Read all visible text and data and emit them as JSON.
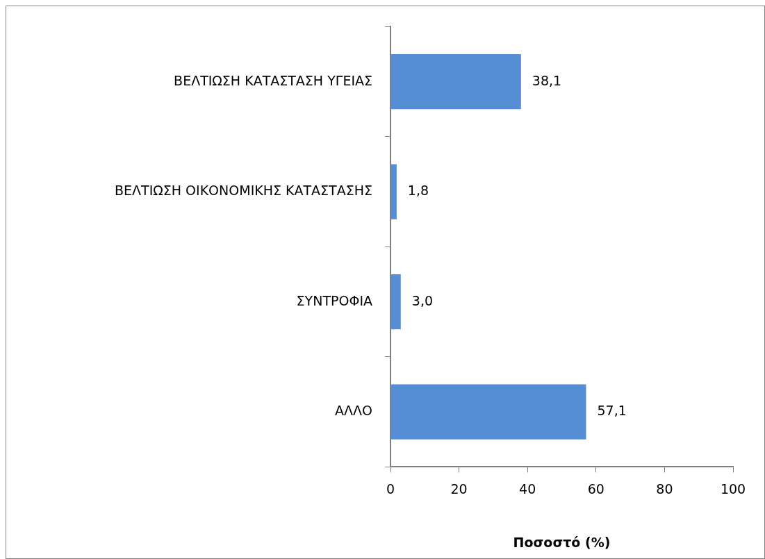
{
  "chart_data": {
    "type": "bar",
    "orientation": "horizontal",
    "xlabel": "Ποσοστό (%)",
    "categories": [
      "ΒΕΛΤΙΩΣΗ ΚΑΤΑΣΤΑΣΗ ΥΓΕΙΑΣ",
      "ΒΕΛΤΙΩΣΗ ΟΙΚΟΝΟΜΙΚΗΣ ΚΑΤΑΣΤΑΣΗΣ",
      "ΣΥΝΤΡΟΦΙΑ",
      "ΑΛΛΟ"
    ],
    "values": [
      38.1,
      1.8,
      3.0,
      57.1
    ],
    "value_labels": [
      "38,1",
      "1,8",
      "3,0",
      "57,1"
    ],
    "color": "#558ed5",
    "xlim": [
      0,
      100
    ],
    "xticks": [
      0,
      20,
      40,
      60,
      80,
      100
    ],
    "grid": false,
    "legend": false
  }
}
